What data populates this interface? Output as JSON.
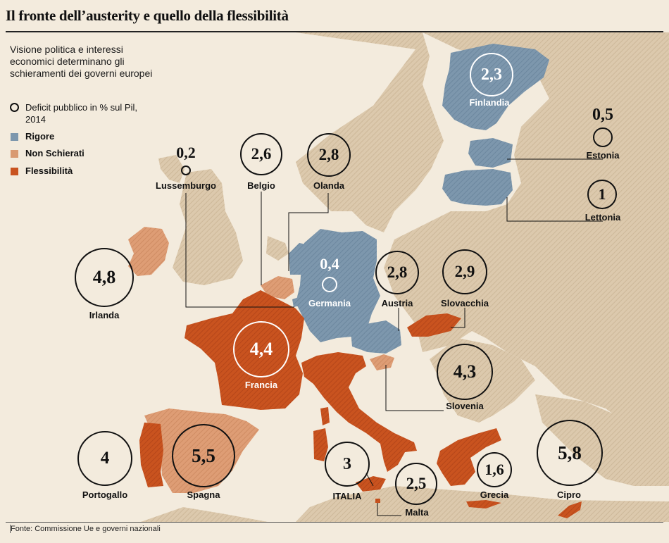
{
  "title": "Il fronte dell’austerity e quello della flessibilità",
  "subtitle": "Visione politica e interessi economici determinano gli schieramenti dei governi europei",
  "legend": {
    "deficit_label": "Deficit pubblico in % sul Pil, 2014",
    "rigore": "Rigore",
    "non_schierati": "Non Schierati",
    "flessibilita": "Flessibilità"
  },
  "colors": {
    "rigore": "#7d97ad",
    "non_schierati": "#d99a72",
    "flessibilita": "#c9531f",
    "land": "#d9c7ac",
    "sea": "#f3ebdd"
  },
  "countries": {
    "finlandia": {
      "name": "Finlandia",
      "deficit": "2,3",
      "group": "rigore"
    },
    "estonia": {
      "name": "Estonia",
      "deficit": "0,5",
      "group": "rigore"
    },
    "lettonia": {
      "name": "Lettonia",
      "deficit": "1",
      "group": "rigore"
    },
    "lussemburgo": {
      "name": "Lussemburgo",
      "deficit": "0,2",
      "group": "rigore"
    },
    "belgio": {
      "name": "Belgio",
      "deficit": "2,6",
      "group": "non_schierati"
    },
    "olanda": {
      "name": "Olanda",
      "deficit": "2,8",
      "group": "rigore"
    },
    "germania": {
      "name": "Germania",
      "deficit": "0,4",
      "group": "rigore"
    },
    "irlanda": {
      "name": "Irlanda",
      "deficit": "4,8",
      "group": "non_schierati"
    },
    "austria": {
      "name": "Austria",
      "deficit": "2,8",
      "group": "rigore"
    },
    "slovacchia": {
      "name": "Slovacchia",
      "deficit": "2,9",
      "group": "flessibilita"
    },
    "francia": {
      "name": "Francia",
      "deficit": "4,4",
      "group": "flessibilita"
    },
    "slovenia": {
      "name": "Slovenia",
      "deficit": "4,3",
      "group": "non_schierati"
    },
    "portogallo": {
      "name": "Portogallo",
      "deficit": "4",
      "group": "flessibilita"
    },
    "spagna": {
      "name": "Spagna",
      "deficit": "5,5",
      "group": "non_schierati"
    },
    "italia": {
      "name": "ITALIA",
      "deficit": "3",
      "group": "flessibilita"
    },
    "malta": {
      "name": "Malta",
      "deficit": "2,5",
      "group": "flessibilita"
    },
    "grecia": {
      "name": "Grecia",
      "deficit": "1,6",
      "group": "flessibilita"
    },
    "cipro": {
      "name": "Cipro",
      "deficit": "5,8",
      "group": "flessibilita"
    }
  },
  "source": "Fonte: Commissione Ue e governi nazionali"
}
